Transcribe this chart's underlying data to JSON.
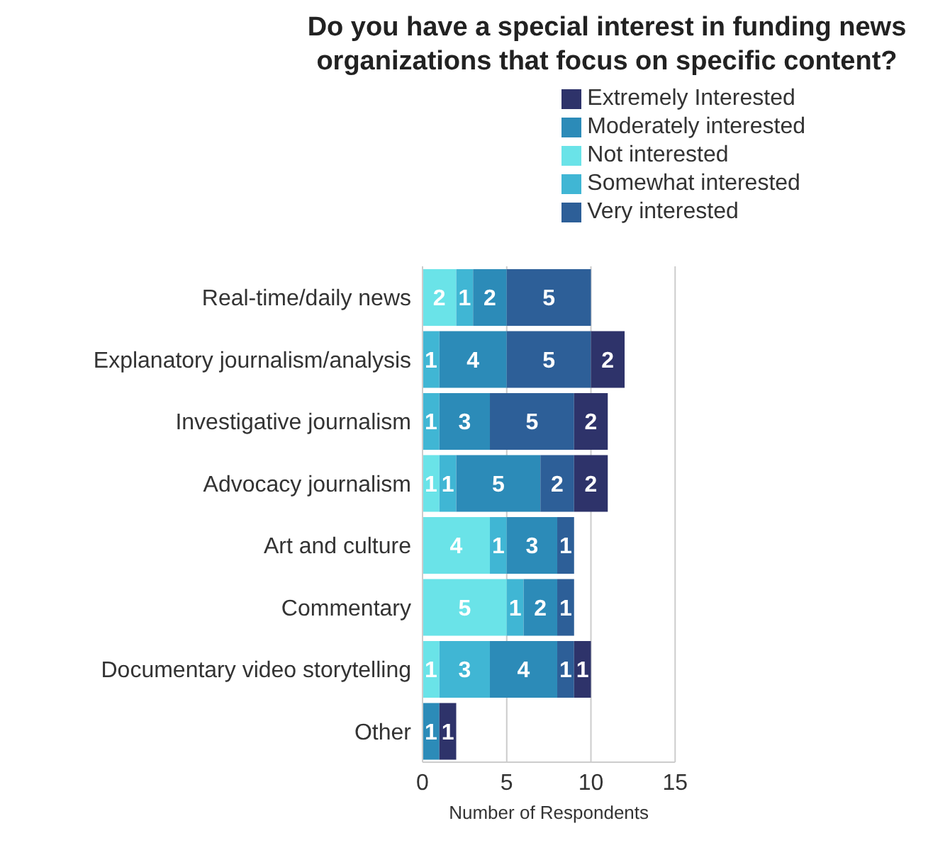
{
  "chart_data": {
    "type": "bar",
    "orientation": "horizontal",
    "stacked": true,
    "title": "Do you have a special interest in funding news organizations that focus on specific content?",
    "xlabel": "Number of Respondents",
    "categories": [
      "Real-time/daily news",
      "Explanatory journalism/analysis",
      "Investigative journalism",
      "Advocacy journalism",
      "Art and culture",
      "Commentary",
      "Documentary video storytelling",
      "Other"
    ],
    "series": [
      {
        "name": "Not interested",
        "color": "#6ae3e8",
        "values": [
          2,
          null,
          null,
          1,
          4,
          5,
          1,
          null
        ]
      },
      {
        "name": "Somewhat interested",
        "color": "#40b6d4",
        "values": [
          1,
          1,
          1,
          1,
          1,
          1,
          3,
          null
        ]
      },
      {
        "name": "Moderately interested",
        "color": "#2c8bb8",
        "values": [
          2,
          4,
          3,
          5,
          3,
          2,
          4,
          1
        ]
      },
      {
        "name": "Very interested",
        "color": "#2d5f98",
        "values": [
          5,
          5,
          5,
          2,
          1,
          1,
          1,
          null
        ]
      },
      {
        "name": "Extremely Interested",
        "color": "#2e336a",
        "values": [
          null,
          2,
          2,
          2,
          null,
          null,
          1,
          1
        ]
      }
    ],
    "xlim": [
      0,
      15
    ],
    "xticks": [
      0,
      5,
      10,
      15
    ],
    "grid": "x",
    "legend": "top right",
    "data_labels": true
  }
}
